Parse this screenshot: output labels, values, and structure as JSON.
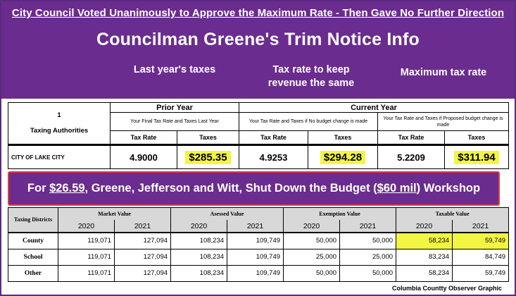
{
  "header": {
    "top_line": " City Council Voted Unanimously to Approve the Maximum Rate - Then Gave No Further Direction",
    "title": "Councilman Greene's Trim Notice Info",
    "label_last_year": "Last year's taxes",
    "label_keep_revenue": "Tax rate to keep revenue the same",
    "label_maximum": "Maximum tax rate"
  },
  "trim_table": {
    "col_number": "1",
    "col_authorities": "Taxing Authorities",
    "prior_year": "Prior Year",
    "current_year": "Current Year",
    "prior_sub": "Your Final Tax Rate and Taxes Last Year",
    "nochange_sub": "Your Tax Rate and Taxes if No budget change is made",
    "proposed_sub": "Your Tax Rate and Taxes if Proposed budget change is made",
    "tax_rate_label": "Tax Rate",
    "taxes_label": "Taxes",
    "row": {
      "authority": "CITY OF LAKE CITY",
      "prior_rate": "4.9000",
      "prior_taxes": "$285.35",
      "nochange_rate": "4.9253",
      "nochange_taxes": "$294.28",
      "proposed_rate": "5.2209",
      "proposed_taxes": "$311.94"
    }
  },
  "banner": {
    "prefix": "For ",
    "amount": "$26.59",
    "middle": ", Greene, Jefferson and Witt, Shut Down the Budget (",
    "budget": "$60 mil",
    "suffix": ") Workshop"
  },
  "value_table": {
    "district_head": "Taxing Districts",
    "market": "Market Value",
    "assessed": "Asessed Value",
    "exemption": "Exemption Value",
    "taxable": "Taxable Value",
    "year_a": "2020",
    "year_b": "2021",
    "rows": [
      {
        "name": "County",
        "m20": "119,071",
        "m21": "127,094",
        "a20": "108,234",
        "a21": "109,749",
        "e20": "50,000",
        "e21": "50,000",
        "t20": "58,234",
        "t21": "59,749"
      },
      {
        "name": "School",
        "m20": "119,071",
        "m21": "127,094",
        "a20": "108,234",
        "a21": "109,749",
        "e20": "25,000",
        "e21": "25,000",
        "t20": "83,234",
        "t21": "84,749"
      },
      {
        "name": "Other",
        "m20": "119,071",
        "m21": "127,094",
        "a20": "108,234",
        "a21": "109,749",
        "e20": "50,000",
        "e21": "50,000",
        "t20": "58,234",
        "t21": "59,749"
      }
    ]
  },
  "credit": "Columbia Countty Observer Graphic",
  "colors": {
    "purple": "#6a2c8e",
    "highlight": "#f2f542",
    "banner_border": "#e83b3b"
  }
}
